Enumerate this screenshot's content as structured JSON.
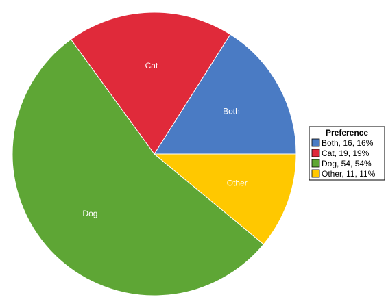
{
  "chart_data": {
    "type": "pie",
    "title": "",
    "legend_title": "Preference",
    "legend_position": "right",
    "categories": [
      "Both",
      "Cat",
      "Dog",
      "Other"
    ],
    "values": [
      16,
      19,
      54,
      11
    ],
    "percents": [
      "16%",
      "19%",
      "54%",
      "11%"
    ],
    "colors": [
      "#4a7bc4",
      "#e02a3a",
      "#5ea635",
      "#ffc800"
    ],
    "legend_entries": [
      "Both, 16, 16%",
      "Cat, 19, 19%",
      "Dog, 54, 54%",
      "Other, 11, 11%"
    ]
  }
}
